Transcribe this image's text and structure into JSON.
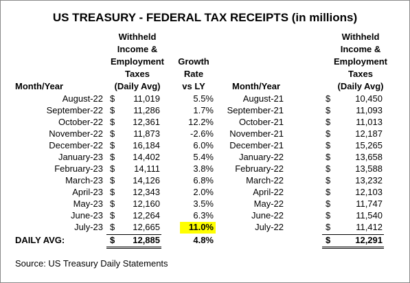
{
  "title": "US TREASURY - FEDERAL TAX RECEIPTS (in millions)",
  "headers": {
    "month_left": "Month/Year",
    "taxes_left": [
      "Withheld",
      "Income &",
      "Employment",
      "Taxes",
      "(Daily Avg)"
    ],
    "growth": [
      "Growth",
      "Rate",
      "vs LY"
    ],
    "month_right": "Month/Year",
    "taxes_right": [
      "Withheld",
      "Income &",
      "Employment",
      "Taxes",
      "(Daily Avg)"
    ]
  },
  "currency": "$",
  "rows": [
    [
      "August-22",
      "11,019",
      "5.5%",
      "August-21",
      "10,450"
    ],
    [
      "September-22",
      "11,286",
      "1.7%",
      "September-21",
      "11,093"
    ],
    [
      "October-22",
      "12,361",
      "12.2%",
      "October-21",
      "11,013"
    ],
    [
      "November-22",
      "11,873",
      "-2.6%",
      "November-21",
      "12,187"
    ],
    [
      "December-22",
      "16,184",
      "6.0%",
      "December-21",
      "15,265"
    ],
    [
      "January-23",
      "14,402",
      "5.4%",
      "January-22",
      "13,658"
    ],
    [
      "February-23",
      "14,111",
      "3.8%",
      "February-22",
      "13,588"
    ],
    [
      "March-23",
      "14,126",
      "6.8%",
      "March-22",
      "13,232"
    ],
    [
      "April-23",
      "12,343",
      "2.0%",
      "April-22",
      "12,103"
    ],
    [
      "May-23",
      "12,160",
      "3.5%",
      "May-22",
      "11,747"
    ],
    [
      "June-23",
      "12,264",
      "6.3%",
      "June-22",
      "11,540"
    ],
    [
      "July-23",
      "12,665",
      "11.0%",
      "July-22",
      "11,412"
    ]
  ],
  "total": {
    "label": "DAILY AVG:",
    "left": "12,885",
    "growth": "4.8%",
    "right": "12,291"
  },
  "source": "Source: US Treasury Daily Statements"
}
